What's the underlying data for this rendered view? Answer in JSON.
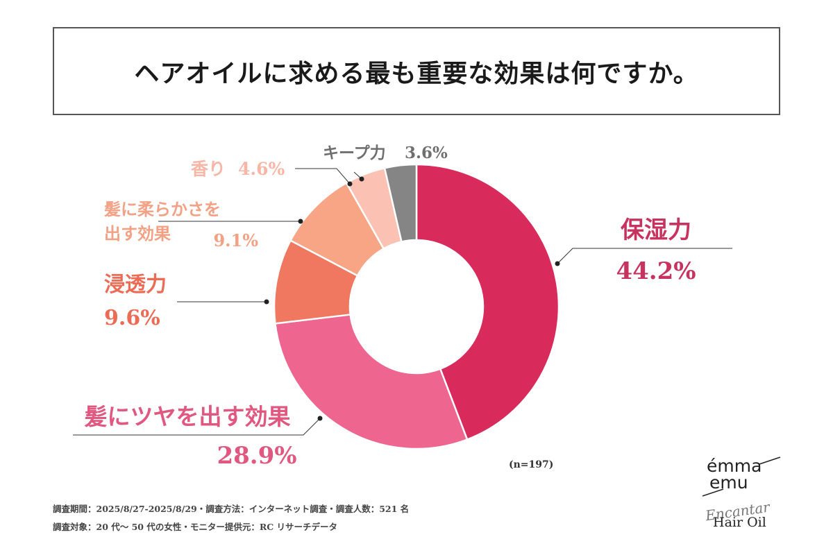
{
  "title": "ヘアオイルに求める最も重要な効果は何ですか。",
  "chart_data": {
    "type": "pie",
    "variant": "donut",
    "series": [
      {
        "name": "保湿力",
        "value": 44.2,
        "label": "44.2%",
        "color": "#d92b5b"
      },
      {
        "name": "髪にツヤを出す効果",
        "value": 28.9,
        "label": "28.9%",
        "color": "#ee6690"
      },
      {
        "name": "浸透力",
        "value": 9.6,
        "label": "9.6%",
        "color": "#f07860"
      },
      {
        "name": "髪に柔らかさを出す効果",
        "value": 9.1,
        "label": "9.1%",
        "color": "#f7a585"
      },
      {
        "name": "香り",
        "value": 4.6,
        "label": "4.6%",
        "color": "#fbc2b3"
      },
      {
        "name": "キープ力",
        "value": 3.6,
        "label": "3.6%",
        "color": "#858585"
      }
    ],
    "label_colors": {
      "保湿力": "#c8325e",
      "髪にツヤを出す効果": "#e0577f",
      "浸透力": "#eb6b55",
      "髪に柔らかさを出す効果": "#f3a184",
      "香り": "#f8b6a6",
      "キープ力": "#6f6f6f"
    },
    "label_lines": {
      "髪に柔らかさを出す効果": [
        "髪に柔らかさを",
        "出す効果"
      ]
    }
  },
  "note": "(n=197)",
  "footer": {
    "line1": "調査期間：2025/8/27-2025/8/29・調査方法：インターネット調査・調査人数：521 名",
    "line2": "調査対象：20 代〜 50 代の女性・モニター提供元：RC リサーチデータ"
  },
  "brand": {
    "line1": "émma",
    "line2": "emu",
    "script": "Encantar",
    "product": "Hair Oil"
  }
}
